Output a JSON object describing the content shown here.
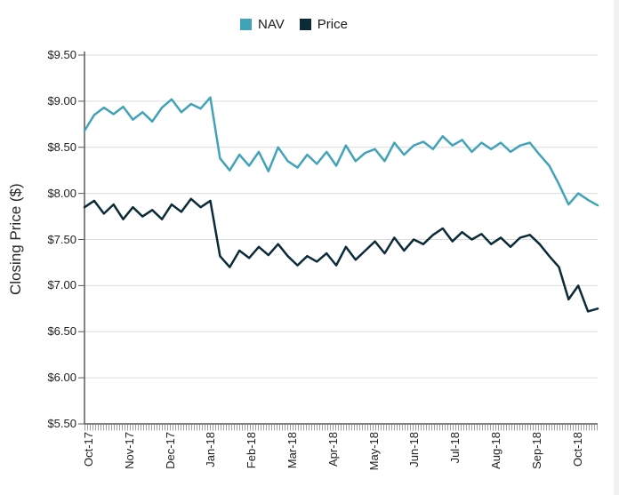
{
  "legend": {
    "items": [
      {
        "label": "NAV",
        "color": "#41A3B7"
      },
      {
        "label": "Price",
        "color": "#0C2B38"
      }
    ]
  },
  "colors": {
    "gridline": "#DCDCDC",
    "axis": "#595959",
    "minor_tick": "#A0A0A0",
    "text": "#212121"
  },
  "chart_data": {
    "type": "line",
    "title": "",
    "xlabel": "",
    "ylabel": "Closing Price ($)",
    "ylim": [
      5.5,
      9.5
    ],
    "ytick_step": 0.5,
    "ytick_labels": [
      "$9.50",
      "$9.00",
      "$8.50",
      "$8.00",
      "$7.50",
      "$7.00",
      "$6.50",
      "$6.00",
      "$5.50"
    ],
    "x_labels": [
      "Oct-17",
      "Nov-17",
      "Dec-17",
      "Jan-18",
      "Feb-18",
      "Mar-18",
      "Apr-18",
      "May-18",
      "Jun-18",
      "Jul-18",
      "Aug-18",
      "Sep-18",
      "Oct-18"
    ],
    "sampling": "weekly-approx",
    "grid": "horizontal",
    "legend_position": "top-center",
    "series": [
      {
        "name": "NAV",
        "color": "#41A3B7",
        "values": [
          8.68,
          8.85,
          8.93,
          8.86,
          8.94,
          8.8,
          8.88,
          8.78,
          8.93,
          9.02,
          8.88,
          8.97,
          8.92,
          9.04,
          8.38,
          8.25,
          8.42,
          8.3,
          8.45,
          8.24,
          8.5,
          8.35,
          8.28,
          8.42,
          8.32,
          8.45,
          8.3,
          8.52,
          8.35,
          8.44,
          8.48,
          8.35,
          8.55,
          8.42,
          8.52,
          8.56,
          8.48,
          8.62,
          8.52,
          8.58,
          8.45,
          8.55,
          8.48,
          8.55,
          8.45,
          8.52,
          8.55,
          8.42,
          8.3,
          8.1,
          7.88,
          8.0,
          7.93,
          7.87
        ]
      },
      {
        "name": "Price",
        "color": "#0C2B38",
        "values": [
          7.85,
          7.92,
          7.78,
          7.88,
          7.72,
          7.85,
          7.75,
          7.82,
          7.72,
          7.88,
          7.8,
          7.94,
          7.85,
          7.92,
          7.32,
          7.2,
          7.38,
          7.3,
          7.42,
          7.33,
          7.45,
          7.32,
          7.22,
          7.32,
          7.26,
          7.35,
          7.22,
          7.42,
          7.28,
          7.38,
          7.48,
          7.35,
          7.52,
          7.38,
          7.5,
          7.45,
          7.55,
          7.62,
          7.48,
          7.58,
          7.5,
          7.56,
          7.45,
          7.52,
          7.42,
          7.52,
          7.55,
          7.45,
          7.32,
          7.2,
          6.85,
          7.0,
          6.72,
          6.75
        ]
      }
    ]
  }
}
